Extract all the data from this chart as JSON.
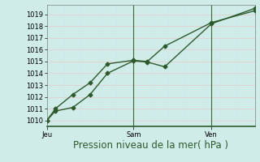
{
  "xlabel": "Pression niveau de la mer( hPa )",
  "bg_color": "#d0ece8",
  "grid_color_h": "#e8c8c8",
  "grid_color_v": "#c8e8e8",
  "line_color": "#2d5a2d",
  "ylim": [
    1009.5,
    1019.8
  ],
  "yticks": [
    1010,
    1011,
    1012,
    1013,
    1014,
    1015,
    1016,
    1017,
    1018,
    1019
  ],
  "xlim": [
    0,
    12
  ],
  "num_vcols": 13,
  "day_ticks": [
    0,
    5.0,
    9.5
  ],
  "day_labels": [
    "Jeu",
    "Sam",
    "Ven"
  ],
  "line1_x": [
    0,
    0.5,
    1.5,
    2.5,
    3.5,
    5.0,
    5.8,
    6.8,
    9.5,
    12.0
  ],
  "line1_y": [
    1010.0,
    1010.8,
    1011.1,
    1012.2,
    1014.0,
    1015.05,
    1014.95,
    1014.55,
    1018.2,
    1019.5
  ],
  "line2_x": [
    0,
    0.5,
    1.5,
    2.5,
    3.5,
    5.0,
    5.8,
    6.8,
    9.5,
    12.0
  ],
  "line2_y": [
    1010.0,
    1011.0,
    1012.2,
    1013.2,
    1014.8,
    1015.1,
    1015.0,
    1016.3,
    1018.3,
    1019.3
  ],
  "marker": "D",
  "markersize": 2.5,
  "linewidth": 1.0,
  "xlabel_fontsize": 8.5,
  "tick_fontsize": 6.0
}
